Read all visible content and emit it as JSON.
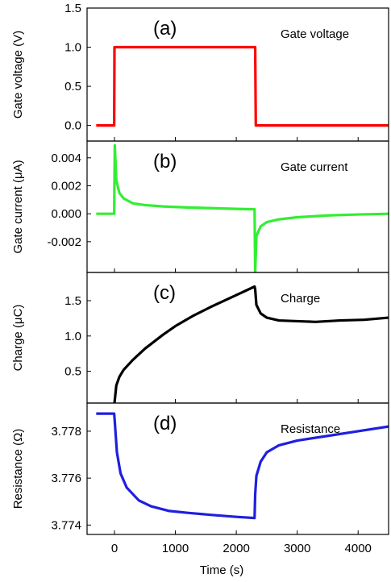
{
  "figure": {
    "xlabel": "Time (s)",
    "xlim": [
      -450,
      4500
    ],
    "xticks": [
      0,
      1000,
      2000,
      3000,
      4000
    ]
  },
  "chart_data": [
    {
      "type": "line",
      "panel_label": "(a)",
      "annotation": "Gate voltage",
      "ylabel": "Gate voltage (V)",
      "ylim": [
        -0.2,
        1.5
      ],
      "yticks": [
        0.0,
        0.5,
        1.0,
        1.5
      ],
      "ytick_labels": [
        "0.0",
        "0.5",
        "1.0",
        "1.5"
      ],
      "color": "#ff0000",
      "series": [
        {
          "x": [
            -300,
            -5,
            0,
            2310,
            2320,
            4500
          ],
          "y": [
            0.0,
            0.0,
            1.0,
            1.0,
            0.0,
            0.0
          ]
        }
      ]
    },
    {
      "type": "line",
      "panel_label": "(b)",
      "annotation": "Gate current",
      "ylabel": "Gate current (μA)",
      "ylim": [
        -0.0042,
        0.0052
      ],
      "yticks": [
        -0.002,
        0.0,
        0.002,
        0.004
      ],
      "ytick_labels": [
        "-0.002",
        "0.000",
        "0.002",
        "0.004"
      ],
      "color": "#33ee33",
      "series": [
        {
          "x": [
            -300,
            -5,
            5,
            30,
            80,
            150,
            300,
            500,
            800,
            1200,
            1600,
            2000,
            2300,
            2310,
            2330,
            2400,
            2500,
            2700,
            3000,
            3500,
            4000,
            4500
          ],
          "y": [
            0.0,
            0.0,
            0.0049,
            0.0024,
            0.0015,
            0.0011,
            0.00075,
            0.00062,
            0.00052,
            0.00045,
            0.0004,
            0.00035,
            0.00032,
            -0.0042,
            -0.0016,
            -0.0009,
            -0.0006,
            -0.0004,
            -0.00025,
            -0.00012,
            -5e-05,
            0.0
          ]
        }
      ]
    },
    {
      "type": "line",
      "panel_label": "(c)",
      "annotation": "Charge",
      "ylabel": "Charge (μC)",
      "ylim": [
        0.05,
        1.9
      ],
      "yticks": [
        0.5,
        1.0,
        1.5
      ],
      "ytick_labels": [
        "0.5",
        "1.0",
        "1.5"
      ],
      "color": "#000000",
      "series": [
        {
          "x": [
            0,
            30,
            80,
            150,
            300,
            500,
            800,
            1000,
            1300,
            1600,
            2000,
            2300,
            2310,
            2330,
            2400,
            2500,
            2700,
            3000,
            3300,
            3700,
            4100,
            4500
          ],
          "y": [
            0.05,
            0.3,
            0.42,
            0.52,
            0.66,
            0.82,
            1.02,
            1.14,
            1.29,
            1.42,
            1.58,
            1.7,
            1.66,
            1.44,
            1.32,
            1.26,
            1.22,
            1.21,
            1.2,
            1.22,
            1.23,
            1.26
          ]
        }
      ]
    },
    {
      "type": "line",
      "panel_label": "(d)",
      "annotation": "Resistance",
      "ylabel": "Resistance (Ω)",
      "ylim": [
        3.7736,
        3.7792
      ],
      "yticks": [
        3.774,
        3.776,
        3.778
      ],
      "ytick_labels": [
        "3.774",
        "3.776",
        "3.778"
      ],
      "color": "#1f1fe0",
      "series": [
        {
          "x": [
            -300,
            -5,
            5,
            40,
            100,
            200,
            400,
            600,
            900,
            1200,
            1600,
            2000,
            2300,
            2310,
            2330,
            2400,
            2500,
            2700,
            3000,
            3500,
            4000,
            4500
          ],
          "y": [
            3.77875,
            3.77875,
            3.7784,
            3.7771,
            3.7762,
            3.7756,
            3.77505,
            3.7748,
            3.7746,
            3.77452,
            3.77443,
            3.77435,
            3.7743,
            3.7753,
            3.7761,
            3.7767,
            3.7771,
            3.7774,
            3.7776,
            3.7778,
            3.778,
            3.7782
          ]
        }
      ]
    }
  ]
}
